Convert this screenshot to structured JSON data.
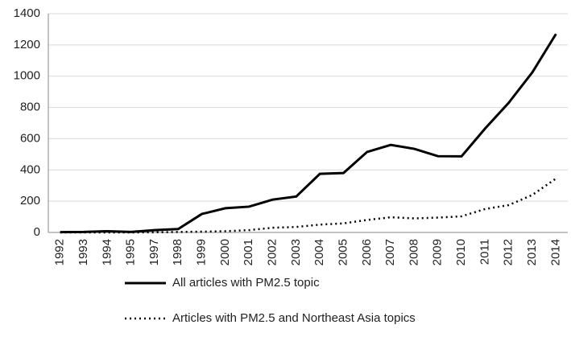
{
  "chart_data": {
    "type": "line",
    "categories": [
      "1992",
      "1993",
      "1994",
      "1995",
      "1997",
      "1998",
      "1999",
      "2000",
      "2001",
      "2002",
      "2003",
      "2004",
      "2005",
      "2006",
      "2007",
      "2008",
      "2009",
      "2010",
      "2011",
      "2012",
      "2013",
      "2014"
    ],
    "series": [
      {
        "name": "All articles with PM2.5 topic",
        "color": "#000000",
        "dash": "solid",
        "values": [
          2,
          3,
          8,
          3,
          15,
          22,
          118,
          155,
          165,
          210,
          230,
          375,
          380,
          515,
          560,
          535,
          488,
          487,
          665,
          830,
          1025,
          1270
        ]
      },
      {
        "name": "Articles with PM2.5 and Northeast Asia topics",
        "color": "#000000",
        "dash": "dotted",
        "values": [
          0,
          0,
          0,
          0,
          1,
          3,
          5,
          8,
          15,
          30,
          35,
          50,
          58,
          80,
          97,
          90,
          95,
          103,
          150,
          175,
          240,
          345
        ]
      }
    ],
    "ylim": [
      0,
      1400
    ],
    "yticks": [
      0,
      200,
      400,
      600,
      800,
      1000,
      1200,
      1400
    ],
    "grid": true,
    "legend": "bottom"
  }
}
